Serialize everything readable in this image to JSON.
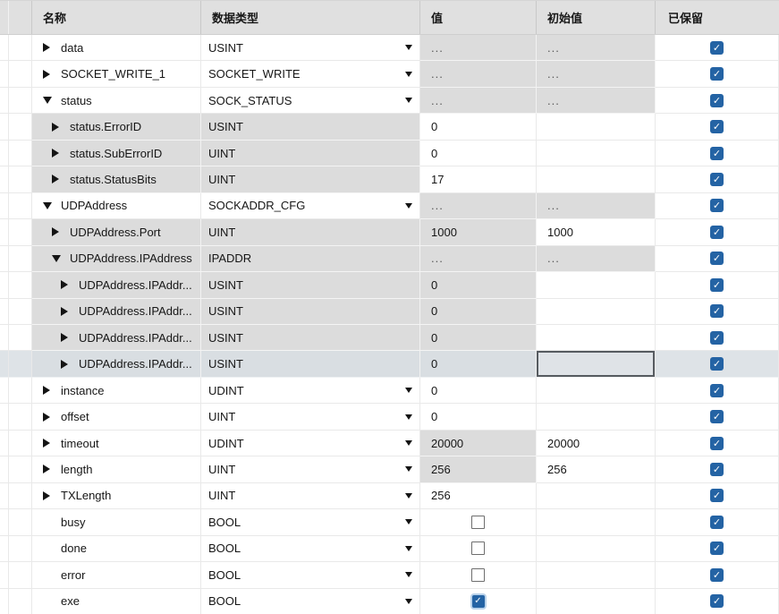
{
  "header": {
    "columns": [
      "名称",
      "数据类型",
      "值",
      "初始值",
      "已保留"
    ]
  },
  "colors": {
    "checkbox_blue": "#2463a4",
    "header_bg": "#e0e0e0",
    "shaded_cell": "#dcdcdc",
    "selected_row": "#dee3e7",
    "selected_cell_border": "#565b60"
  },
  "icons": {
    "check_glyph": "✓"
  },
  "rows": [
    {
      "name": "data",
      "level": 1,
      "expand": "collapsed",
      "row_shaded": false,
      "type": "USINT",
      "type_dropdown": true,
      "value": "...",
      "value_shaded": true,
      "value_checkbox": null,
      "initial": "...",
      "initial_shaded": true,
      "retained": true,
      "selected": false
    },
    {
      "name": "SOCKET_WRITE_1",
      "level": 1,
      "expand": "collapsed",
      "row_shaded": false,
      "type": "SOCKET_WRITE",
      "type_dropdown": true,
      "value": "...",
      "value_shaded": true,
      "value_checkbox": null,
      "initial": "...",
      "initial_shaded": true,
      "retained": true,
      "selected": false
    },
    {
      "name": "status",
      "level": 1,
      "expand": "expanded",
      "row_shaded": false,
      "type": "SOCK_STATUS",
      "type_dropdown": true,
      "value": "...",
      "value_shaded": true,
      "value_checkbox": null,
      "initial": "...",
      "initial_shaded": true,
      "retained": true,
      "selected": false
    },
    {
      "name": "status.ErrorID",
      "level": 2,
      "expand": "collapsed",
      "row_shaded": true,
      "type": "USINT",
      "type_dropdown": false,
      "value": "0",
      "value_shaded": false,
      "value_checkbox": null,
      "initial": "",
      "initial_shaded": false,
      "retained": true,
      "selected": false
    },
    {
      "name": "status.SubErrorID",
      "level": 2,
      "expand": "collapsed",
      "row_shaded": true,
      "type": "UINT",
      "type_dropdown": false,
      "value": "0",
      "value_shaded": false,
      "value_checkbox": null,
      "initial": "",
      "initial_shaded": false,
      "retained": true,
      "selected": false
    },
    {
      "name": "status.StatusBits",
      "level": 2,
      "expand": "collapsed",
      "row_shaded": true,
      "type": "UINT",
      "type_dropdown": false,
      "value": "17",
      "value_shaded": false,
      "value_checkbox": null,
      "initial": "",
      "initial_shaded": false,
      "retained": true,
      "selected": false
    },
    {
      "name": "UDPAddress",
      "level": 1,
      "expand": "expanded",
      "row_shaded": false,
      "type": "SOCKADDR_CFG",
      "type_dropdown": true,
      "value": "...",
      "value_shaded": true,
      "value_checkbox": null,
      "initial": "...",
      "initial_shaded": true,
      "retained": true,
      "selected": false
    },
    {
      "name": "UDPAddress.Port",
      "level": 2,
      "expand": "collapsed",
      "row_shaded": true,
      "type": "UINT",
      "type_dropdown": false,
      "value": "1000",
      "value_shaded": true,
      "value_checkbox": null,
      "initial": "1000",
      "initial_shaded": false,
      "retained": true,
      "selected": false
    },
    {
      "name": "UDPAddress.IPAddress",
      "level": 2,
      "expand": "expanded",
      "row_shaded": true,
      "type": "IPADDR",
      "type_dropdown": false,
      "value": "...",
      "value_shaded": true,
      "value_checkbox": null,
      "initial": "...",
      "initial_shaded": true,
      "retained": true,
      "selected": false
    },
    {
      "name": "UDPAddress.IPAddr...",
      "level": 3,
      "expand": "collapsed",
      "row_shaded": true,
      "type": "USINT",
      "type_dropdown": false,
      "value": "0",
      "value_shaded": true,
      "value_checkbox": null,
      "initial": "",
      "initial_shaded": false,
      "retained": true,
      "selected": false
    },
    {
      "name": "UDPAddress.IPAddr...",
      "level": 3,
      "expand": "collapsed",
      "row_shaded": true,
      "type": "USINT",
      "type_dropdown": false,
      "value": "0",
      "value_shaded": true,
      "value_checkbox": null,
      "initial": "",
      "initial_shaded": false,
      "retained": true,
      "selected": false
    },
    {
      "name": "UDPAddress.IPAddr...",
      "level": 3,
      "expand": "collapsed",
      "row_shaded": true,
      "type": "USINT",
      "type_dropdown": false,
      "value": "0",
      "value_shaded": true,
      "value_checkbox": null,
      "initial": "",
      "initial_shaded": false,
      "retained": true,
      "selected": false
    },
    {
      "name": "UDPAddress.IPAddr...",
      "level": 3,
      "expand": "collapsed",
      "row_shaded": true,
      "type": "USINT",
      "type_dropdown": false,
      "value": "0",
      "value_shaded": true,
      "value_checkbox": null,
      "initial": "",
      "initial_shaded": false,
      "retained": true,
      "selected": true,
      "selected_cell": "initial"
    },
    {
      "name": "instance",
      "level": 1,
      "expand": "collapsed",
      "row_shaded": false,
      "type": "UDINT",
      "type_dropdown": true,
      "value": "0",
      "value_shaded": false,
      "value_checkbox": null,
      "initial": "",
      "initial_shaded": false,
      "retained": true,
      "selected": false
    },
    {
      "name": "offset",
      "level": 1,
      "expand": "collapsed",
      "row_shaded": false,
      "type": "UINT",
      "type_dropdown": true,
      "value": "0",
      "value_shaded": false,
      "value_checkbox": null,
      "initial": "",
      "initial_shaded": false,
      "retained": true,
      "selected": false
    },
    {
      "name": "timeout",
      "level": 1,
      "expand": "collapsed",
      "row_shaded": false,
      "type": "UDINT",
      "type_dropdown": true,
      "value": "20000",
      "value_shaded": true,
      "value_checkbox": null,
      "initial": "20000",
      "initial_shaded": false,
      "retained": true,
      "selected": false
    },
    {
      "name": "length",
      "level": 1,
      "expand": "collapsed",
      "row_shaded": false,
      "type": "UINT",
      "type_dropdown": true,
      "value": "256",
      "value_shaded": true,
      "value_checkbox": null,
      "initial": "256",
      "initial_shaded": false,
      "retained": true,
      "selected": false
    },
    {
      "name": "TXLength",
      "level": 1,
      "expand": "collapsed",
      "row_shaded": false,
      "type": "UINT",
      "type_dropdown": true,
      "value": "256",
      "value_shaded": false,
      "value_checkbox": null,
      "initial": "",
      "initial_shaded": false,
      "retained": true,
      "selected": false
    },
    {
      "name": "busy",
      "level": 1,
      "expand": "none",
      "row_shaded": false,
      "type": "BOOL",
      "type_dropdown": true,
      "value": "",
      "value_shaded": false,
      "value_checkbox": "unchecked",
      "initial": "",
      "initial_shaded": false,
      "retained": true,
      "selected": false
    },
    {
      "name": "done",
      "level": 1,
      "expand": "none",
      "row_shaded": false,
      "type": "BOOL",
      "type_dropdown": true,
      "value": "",
      "value_shaded": false,
      "value_checkbox": "unchecked",
      "initial": "",
      "initial_shaded": false,
      "retained": true,
      "selected": false
    },
    {
      "name": "error",
      "level": 1,
      "expand": "none",
      "row_shaded": false,
      "type": "BOOL",
      "type_dropdown": true,
      "value": "",
      "value_shaded": false,
      "value_checkbox": "unchecked",
      "initial": "",
      "initial_shaded": false,
      "retained": true,
      "selected": false
    },
    {
      "name": "exe",
      "level": 1,
      "expand": "none",
      "row_shaded": false,
      "type": "BOOL",
      "type_dropdown": true,
      "value": "",
      "value_shaded": false,
      "value_checkbox": "checked",
      "initial": "",
      "initial_shaded": false,
      "retained": true,
      "selected": false
    }
  ]
}
